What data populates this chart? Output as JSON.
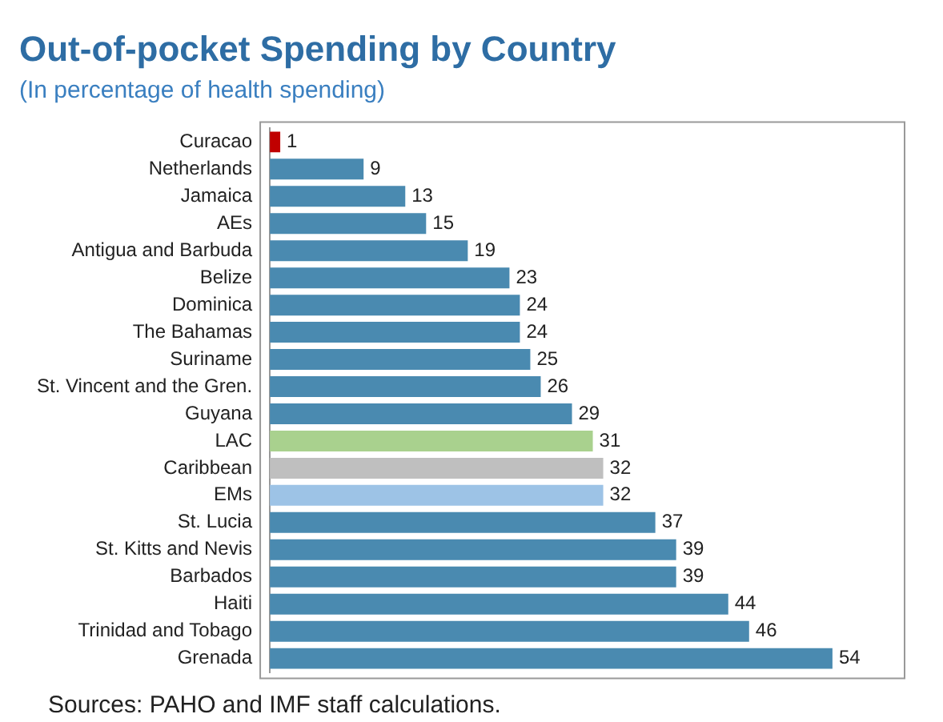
{
  "chart_data": {
    "type": "bar",
    "orientation": "horizontal",
    "title": "Out-of-pocket Spending by Country",
    "subtitle": "(In percentage of health spending)",
    "categories": [
      "Curacao",
      "Netherlands",
      "Jamaica",
      "AEs",
      "Antigua and Barbuda",
      "Belize",
      "Dominica",
      "The Bahamas",
      "Suriname",
      "St. Vincent and the Gren.",
      "Guyana",
      "LAC",
      "Caribbean",
      "EMs",
      "St. Lucia",
      "St. Kitts and Nevis",
      "Barbados",
      "Haiti",
      "Trinidad and Tobago",
      "Grenada"
    ],
    "values": [
      1,
      9,
      13,
      15,
      19,
      23,
      24,
      24,
      25,
      26,
      29,
      31,
      32,
      32,
      37,
      39,
      39,
      44,
      46,
      54
    ],
    "colors": [
      "#c00000",
      "#4a8ab0",
      "#4a8ab0",
      "#4a8ab0",
      "#4a8ab0",
      "#4a8ab0",
      "#4a8ab0",
      "#4a8ab0",
      "#4a8ab0",
      "#4a8ab0",
      "#4a8ab0",
      "#a9d18e",
      "#bfbfbf",
      "#9dc3e6",
      "#4a8ab0",
      "#4a8ab0",
      "#4a8ab0",
      "#4a8ab0",
      "#4a8ab0",
      "#4a8ab0"
    ],
    "tick_labels": "y",
    "grid": false,
    "legend": false,
    "data_labels": true,
    "annotations": [
      "Sources: PAHO and IMF staff calculations."
    ]
  }
}
